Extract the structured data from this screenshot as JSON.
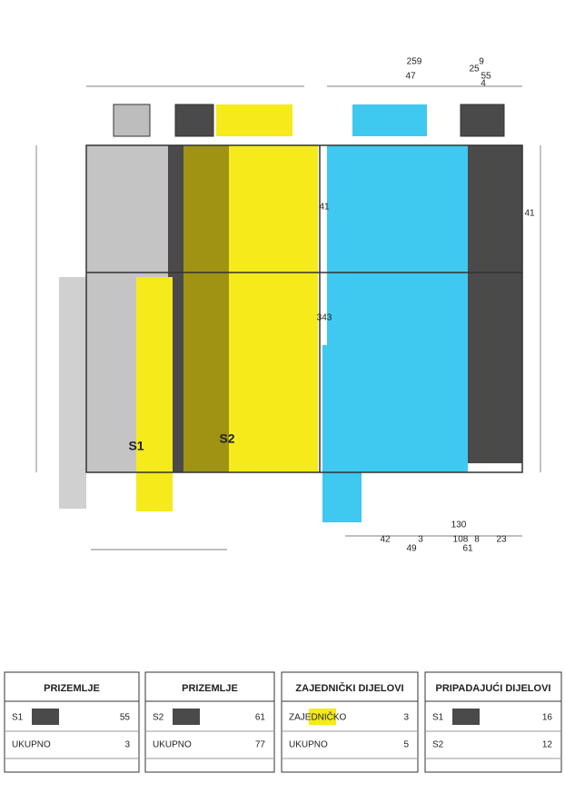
{
  "plan": {
    "dimensions_top": [
      "259",
      "9",
      "47",
      "25",
      "55",
      "4"
    ],
    "dimensions_side": [
      "41",
      "343",
      "41"
    ],
    "dimensions_bottom": [
      "130",
      "42",
      "3",
      "108",
      "8",
      "23",
      "49",
      "61"
    ],
    "units": [
      "S1",
      "S2"
    ]
  },
  "tables": [
    {
      "title": "PRIZEMLJE",
      "rows": [
        [
          "S1",
          "55"
        ],
        [
          "UKUPNO",
          "3"
        ]
      ]
    },
    {
      "title": "PRIZEMLJE",
      "rows": [
        [
          "S2",
          "61"
        ],
        [
          "UKUPNO",
          "77"
        ]
      ]
    },
    {
      "title": "ZAJEDNIČKI DIJELOVI",
      "rows": [
        [
          "ZAJEDNIČKO",
          "3"
        ],
        [
          "UKUPNO",
          "5"
        ]
      ]
    },
    {
      "title": "PRIPADAJUĆI DIJELOVI",
      "rows": [
        [
          "S1",
          "16"
        ],
        [
          "S2",
          "12"
        ]
      ]
    }
  ]
}
